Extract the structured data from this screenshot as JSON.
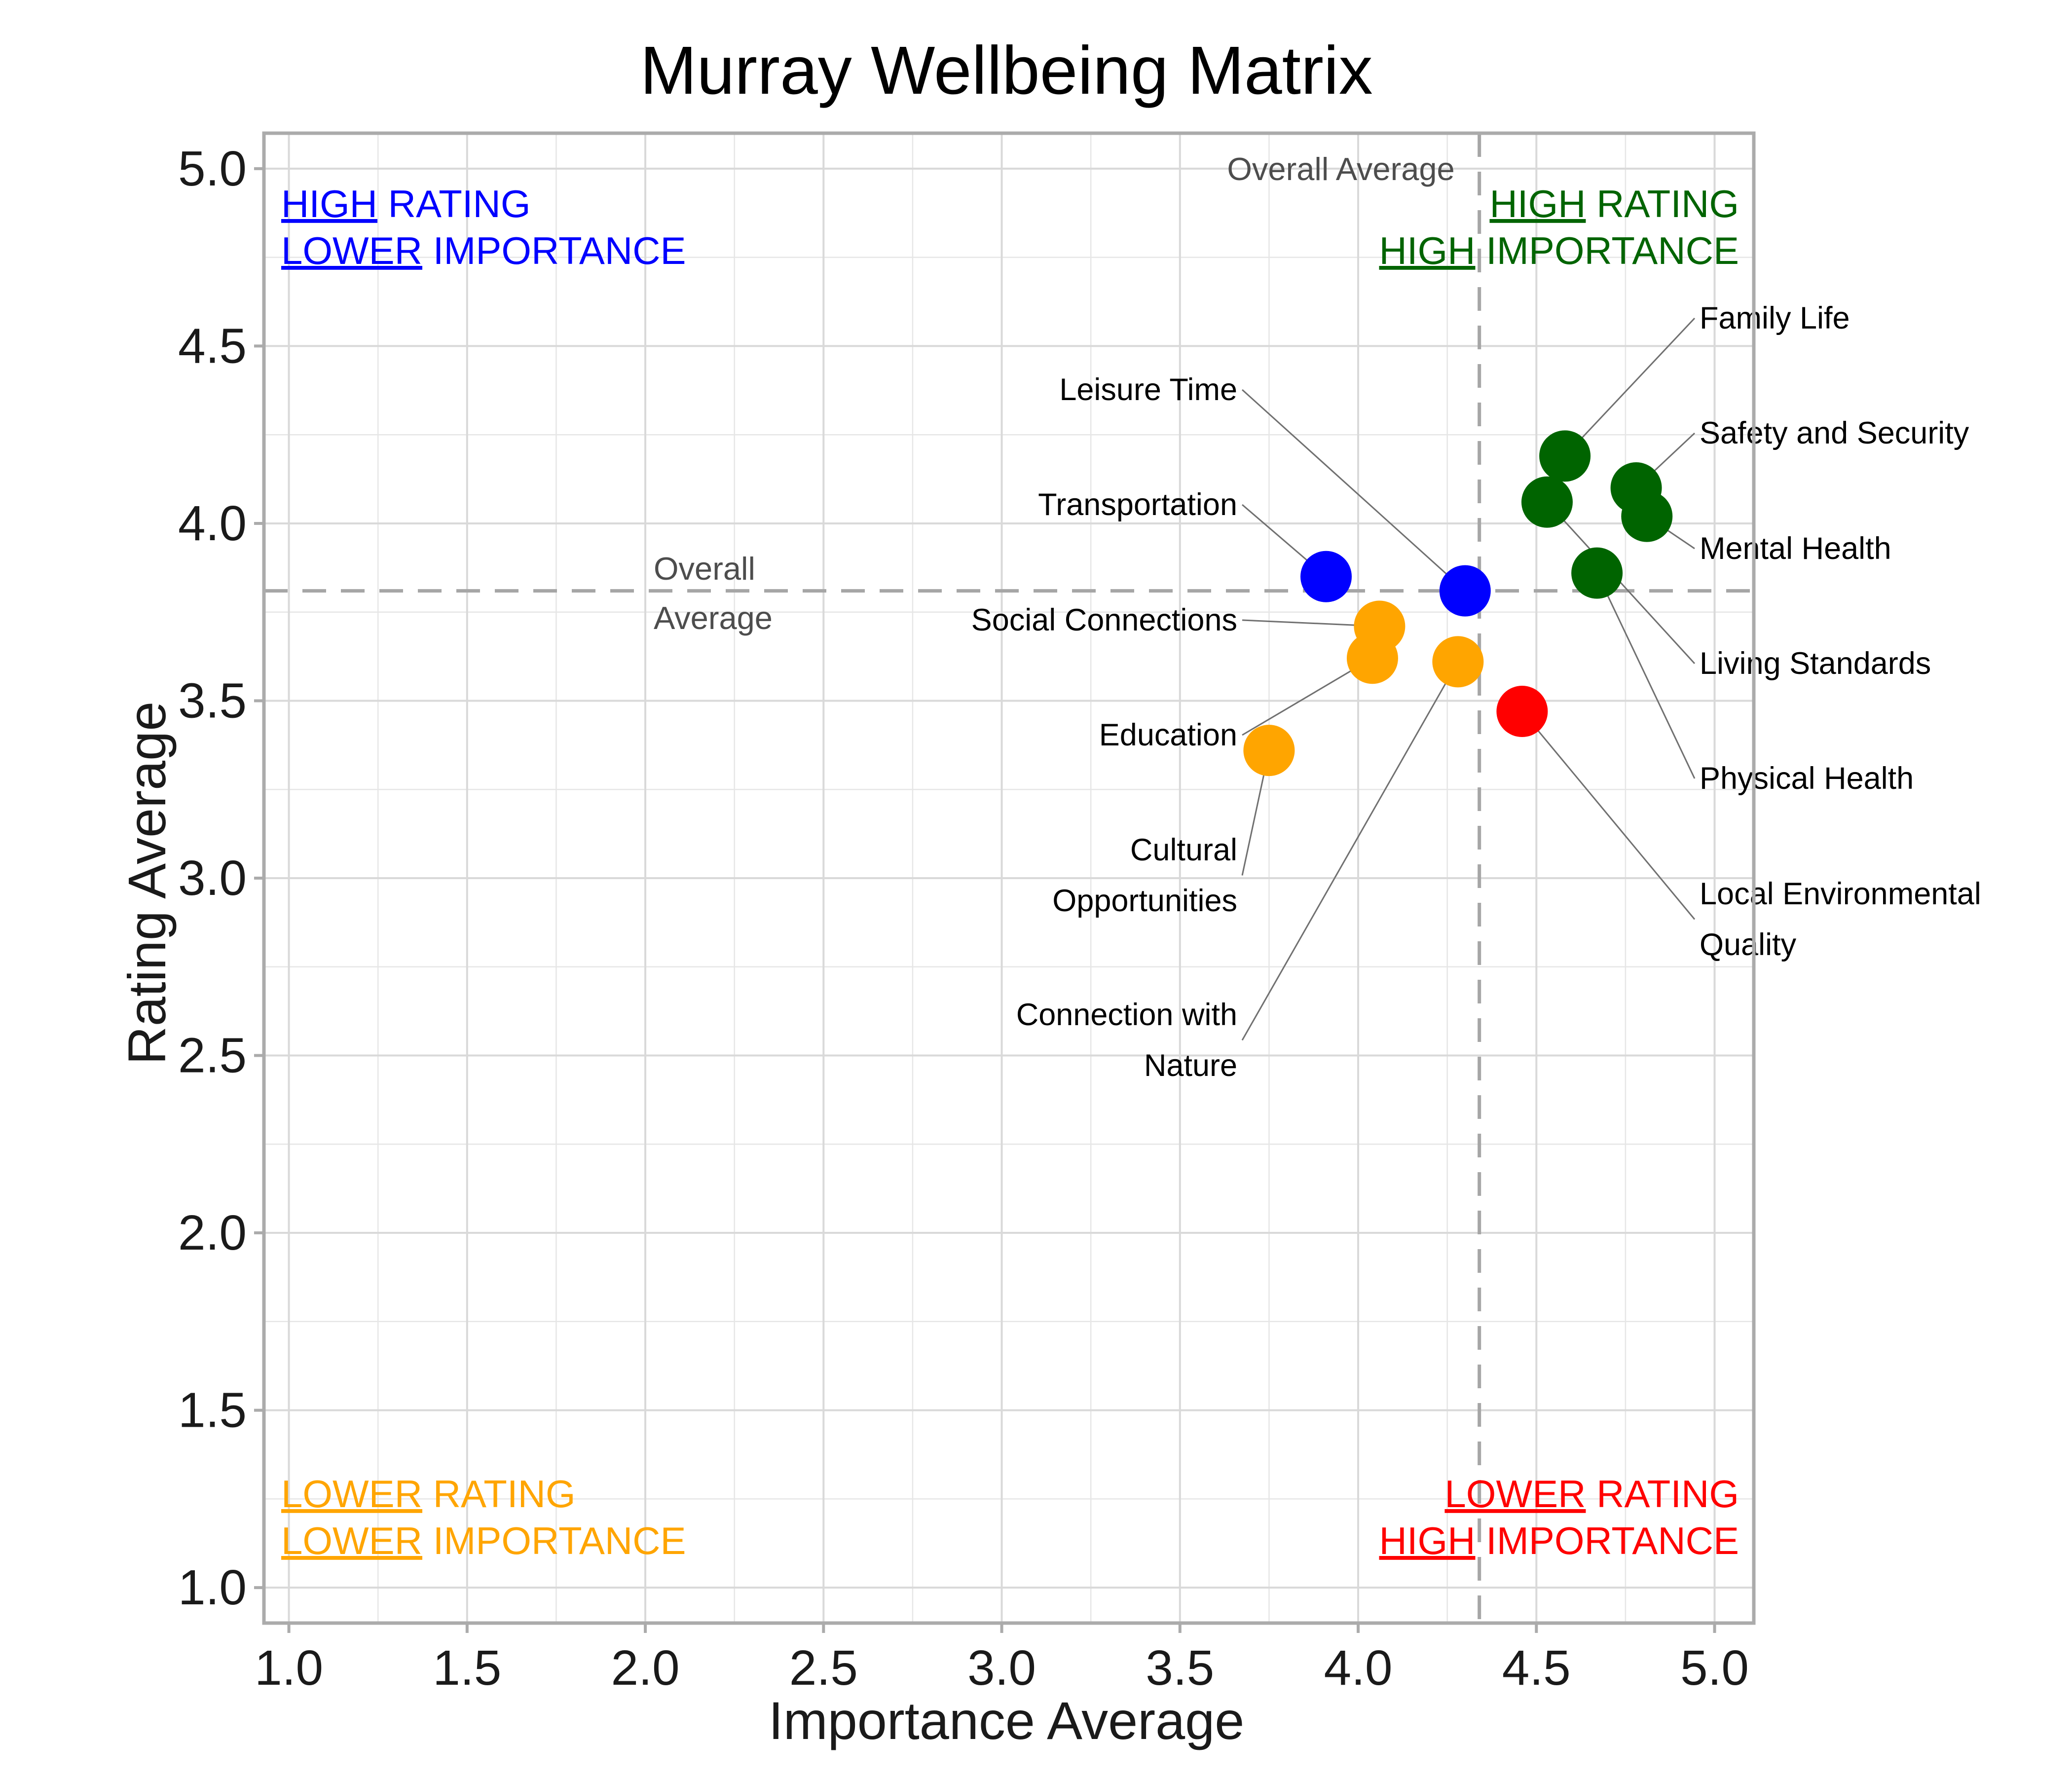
{
  "chart_data": {
    "type": "scatter",
    "title": "Murray Wellbeing Matrix",
    "xlabel": "Importance Average",
    "ylabel": "Rating Average",
    "xlim": [
      0.93,
      5.11
    ],
    "ylim": [
      0.9,
      5.1
    ],
    "x_ticks": [
      "1.0",
      "1.5",
      "2.0",
      "2.5",
      "3.0",
      "3.5",
      "4.0",
      "4.5",
      "5.0"
    ],
    "y_ticks": [
      "1.0",
      "1.5",
      "2.0",
      "2.5",
      "3.0",
      "3.5",
      "4.0",
      "4.5",
      "5.0"
    ],
    "grid": true,
    "overall_average": {
      "importance": 4.34,
      "rating": 3.81
    },
    "avg_label_vertical": "Overall Average",
    "avg_label_horizontal": [
      "Overall",
      "Average"
    ],
    "quadrant_colors": {
      "high_high": "#006400",
      "high_low": "#0000ff",
      "low_low": "#ffa500",
      "low_high": "#ff0000"
    },
    "quadrants": {
      "top_left": {
        "word1": "HIGH",
        "rest1": " RATING",
        "word2": "LOWER",
        "rest2": " IMPORTANCE",
        "color": "#0000ff"
      },
      "top_right": {
        "word1": "HIGH",
        "rest1": " RATING",
        "word2": "HIGH",
        "rest2": " IMPORTANCE",
        "color": "#006400"
      },
      "bottom_left": {
        "word1": "LOWER",
        "rest1": " RATING",
        "word2": "LOWER",
        "rest2": " IMPORTANCE",
        "color": "#ffa500"
      },
      "bottom_right": {
        "word1": "LOWER",
        "rest1": " RATING",
        "word2": "HIGH",
        "rest2": " IMPORTANCE",
        "color": "#ff0000"
      }
    },
    "points": [
      {
        "label": [
          "Family Life"
        ],
        "importance": 4.58,
        "rating": 4.19,
        "color": "#006400",
        "side": "right"
      },
      {
        "label": [
          "Safety and Security"
        ],
        "importance": 4.78,
        "rating": 4.1,
        "color": "#006400",
        "side": "right"
      },
      {
        "label": [
          "Mental Health"
        ],
        "importance": 4.81,
        "rating": 4.02,
        "color": "#006400",
        "side": "right"
      },
      {
        "label": [
          "Living Standards"
        ],
        "importance": 4.53,
        "rating": 4.06,
        "color": "#006400",
        "side": "right"
      },
      {
        "label": [
          "Physical Health"
        ],
        "importance": 4.67,
        "rating": 3.86,
        "color": "#006400",
        "side": "right"
      },
      {
        "label": [
          "Local Environmental",
          "Quality"
        ],
        "importance": 4.46,
        "rating": 3.47,
        "color": "#ff0000",
        "side": "right"
      },
      {
        "label": [
          "Leisure Time"
        ],
        "importance": 4.3,
        "rating": 3.81,
        "color": "#0000ff",
        "side": "left"
      },
      {
        "label": [
          "Transportation"
        ],
        "importance": 3.91,
        "rating": 3.85,
        "color": "#0000ff",
        "side": "left"
      },
      {
        "label": [
          "Social Connections"
        ],
        "importance": 4.06,
        "rating": 3.71,
        "color": "#ffa500",
        "side": "left"
      },
      {
        "label": [
          "Education"
        ],
        "importance": 4.04,
        "rating": 3.62,
        "color": "#ffa500",
        "side": "left"
      },
      {
        "label": [
          "Cultural",
          "Opportunities"
        ],
        "importance": 3.75,
        "rating": 3.36,
        "color": "#ffa500",
        "side": "left"
      },
      {
        "label": [
          "Connection with",
          "Nature"
        ],
        "importance": 4.28,
        "rating": 3.61,
        "color": "#ffa500",
        "side": "left"
      }
    ]
  }
}
